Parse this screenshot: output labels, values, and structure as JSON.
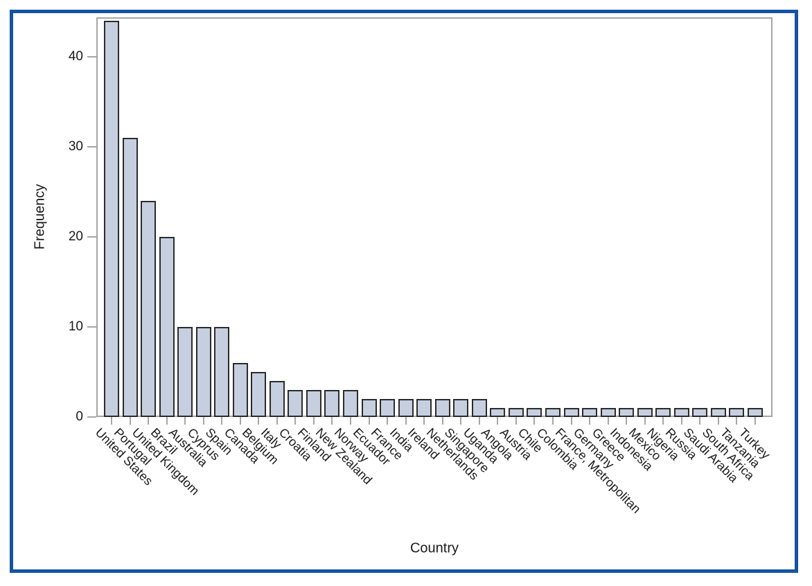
{
  "chart_data": {
    "type": "bar",
    "title": "",
    "xlabel": "Country",
    "ylabel": "Frequency",
    "categories": [
      "United States",
      "Portugal",
      "United Kingdom",
      "Brazil",
      "Australia",
      "Cyprus",
      "Spain",
      "Canada",
      "Belgium",
      "Italy",
      "Croatia",
      "Finland",
      "New Zealand",
      "Norway",
      "Ecuador",
      "France",
      "India",
      "Ireland",
      "Netherlands",
      "Singapore",
      "Uganda",
      "Angola",
      "Austria",
      "Chile",
      "Colombia",
      "France, Metropolitan",
      "Germany",
      "Greece",
      "Indonesia",
      "Mexico",
      "Nigeria",
      "Russia",
      "Saudi Arabia",
      "South Africa",
      "Tanzania",
      "Turkey"
    ],
    "values": [
      44,
      31,
      24,
      20,
      10,
      10,
      10,
      6,
      5,
      4,
      3,
      3,
      3,
      3,
      2,
      2,
      2,
      2,
      2,
      2,
      2,
      1,
      1,
      1,
      1,
      1,
      1,
      1,
      1,
      1,
      1,
      1,
      1,
      1,
      1,
      1
    ],
    "yticks": [
      0,
      10,
      20,
      30,
      40
    ],
    "ylim": [
      0,
      44.4
    ],
    "grid": false,
    "legend": false,
    "colors": {
      "bar_fill": "#c6cfe0",
      "bar_border": "#2b2b2b",
      "axis_frame": "#a6a6a6",
      "tick_mark": "#a6a6a6",
      "text": "#1a1a1a",
      "page_border": "#1453a4",
      "background": "#ffffff"
    }
  }
}
